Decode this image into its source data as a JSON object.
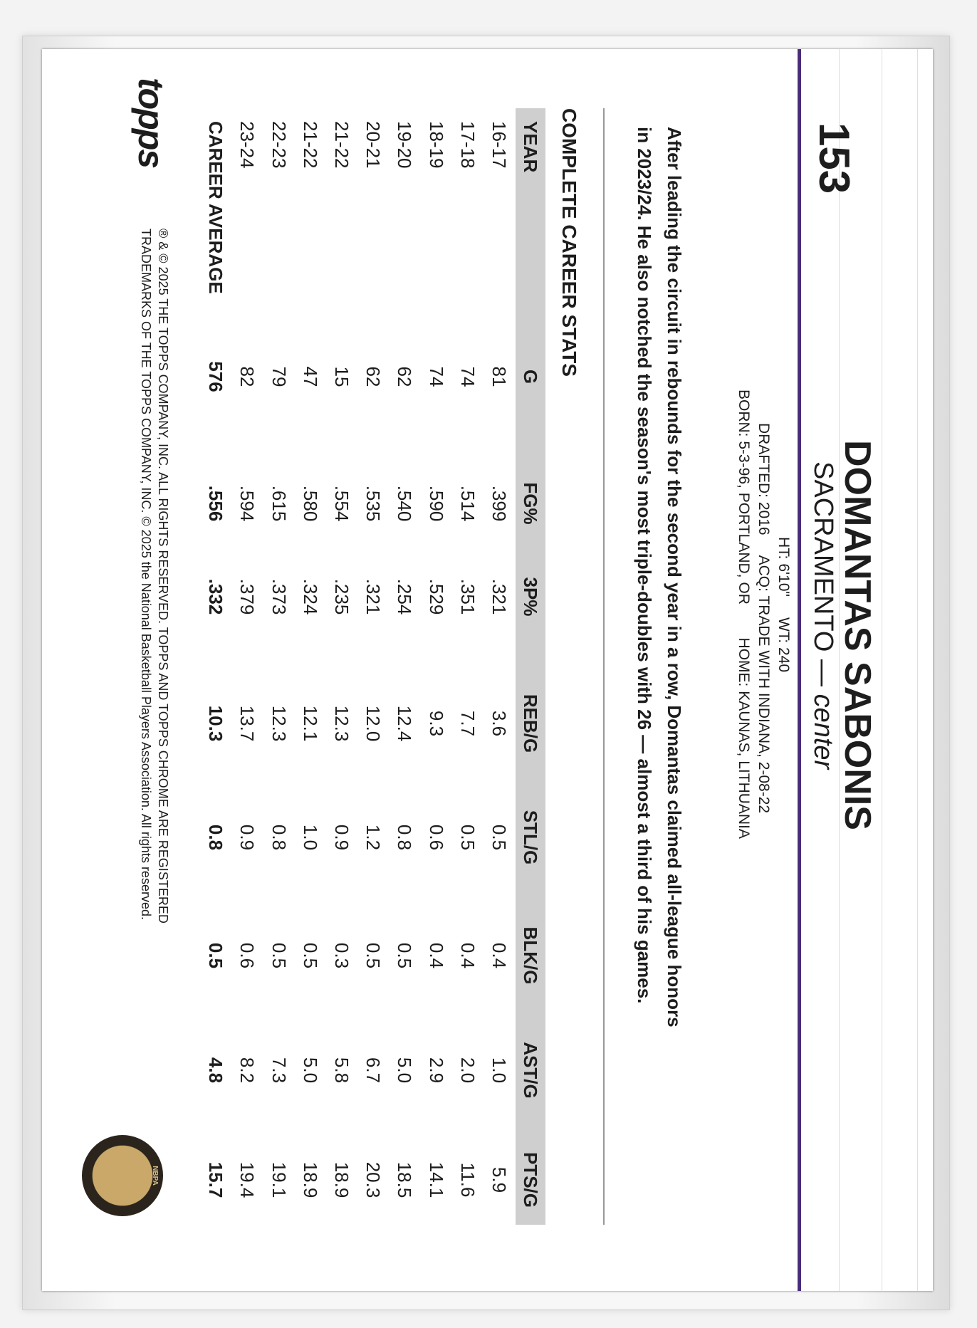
{
  "card": {
    "number": "153",
    "player_name": "DOMANTAS SABONIS",
    "team": "SACRAMENTO",
    "dash": "—",
    "position": "center",
    "bio": {
      "line1": "HT: 6'10\"     WT: 240",
      "line2": "DRAFTED: 2016     ACQ: TRADE WITH INDIANA, 2-08-22",
      "line3": "BORN: 5-3-96, PORTLAND, OR        HOME: KAUNAS, LITHUANIA"
    },
    "blurb": {
      "line1": "After leading the circuit in rebounds for the second year in a row, Domantas claimed all-league honors",
      "line2": "in 2023/24. He also notched the season's most triple-doubles with 26 — almost a third of his games."
    }
  },
  "stats": {
    "title": "COMPLETE CAREER STATS",
    "headers": [
      "YEAR",
      "G",
      "FG%",
      "3P%",
      "REB/G",
      "STL/G",
      "BLK/G",
      "AST/G",
      "PTS/G"
    ],
    "rows": [
      [
        "16-17",
        "81",
        ".399",
        ".321",
        "3.6",
        "0.5",
        "0.4",
        "1.0",
        "5.9"
      ],
      [
        "17-18",
        "74",
        ".514",
        ".351",
        "7.7",
        "0.5",
        "0.4",
        "2.0",
        "11.6"
      ],
      [
        "18-19",
        "74",
        ".590",
        ".529",
        "9.3",
        "0.6",
        "0.4",
        "2.9",
        "14.1"
      ],
      [
        "19-20",
        "62",
        ".540",
        ".254",
        "12.4",
        "0.8",
        "0.5",
        "5.0",
        "18.5"
      ],
      [
        "20-21",
        "62",
        ".535",
        ".321",
        "12.0",
        "1.2",
        "0.5",
        "6.7",
        "20.3"
      ],
      [
        "21-22",
        "15",
        ".554",
        ".235",
        "12.3",
        "0.9",
        "0.3",
        "5.8",
        "18.9"
      ],
      [
        "21-22",
        "47",
        ".580",
        ".324",
        "12.1",
        "1.0",
        "0.5",
        "5.0",
        "18.9"
      ],
      [
        "22-23",
        "79",
        ".615",
        ".373",
        "12.3",
        "0.8",
        "0.5",
        "7.3",
        "19.1"
      ],
      [
        "23-24",
        "82",
        ".594",
        ".379",
        "13.7",
        "0.9",
        "0.6",
        "8.2",
        "19.4"
      ]
    ],
    "career": [
      "CAREER AVERAGE",
      "576",
      ".556",
      ".332",
      "10.3",
      "0.8",
      "0.5",
      "4.8",
      "15.7"
    ]
  },
  "footer": {
    "copyright_line1": "® & © 2025 THE TOPPS COMPANY, INC. ALL RIGHTS RESERVED. TOPPS AND TOPPS CHROME ARE REGISTERED",
    "copyright_line2": "TRADEMARKS OF THE TOPPS COMPANY, INC. © 2025 the National Basketball Players Association. All rights reserved.",
    "brand_logo": "topps",
    "seal_text": "NATIONAL BASKETBALL PLAYERS ASSOCIATION"
  },
  "colors": {
    "accent": "#4b2c7c",
    "header_bar": "#cfcfcf"
  }
}
